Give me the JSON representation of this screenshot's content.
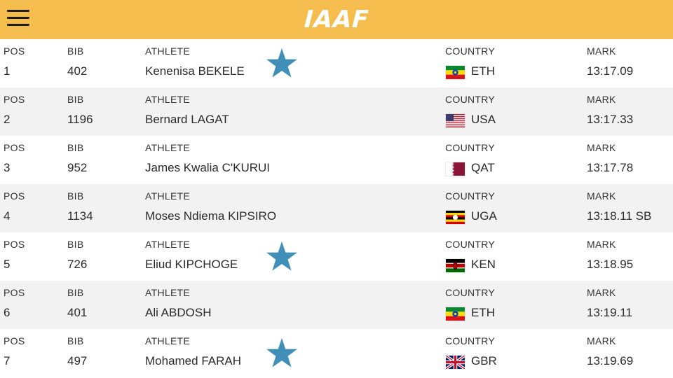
{
  "header": {
    "logo_text": "IAAF"
  },
  "columns": {
    "pos": "POS",
    "bib": "BIB",
    "athlete": "ATHLETE",
    "country": "COUNTRY",
    "mark": "MARK"
  },
  "colors": {
    "header_bg": "#f5bd4d",
    "star": "#3f8fb8"
  },
  "results": [
    {
      "pos": "1",
      "bib": "402",
      "athlete": "Kenenisa BEKELE",
      "country": "ETH",
      "flag": "eth",
      "mark": "13:17.09",
      "starred": true
    },
    {
      "pos": "2",
      "bib": "1196",
      "athlete": "Bernard LAGAT",
      "country": "USA",
      "flag": "usa",
      "mark": "13:17.33",
      "starred": false
    },
    {
      "pos": "3",
      "bib": "952",
      "athlete": "James Kwalia C'KURUI",
      "country": "QAT",
      "flag": "qat",
      "mark": "13:17.78",
      "starred": false
    },
    {
      "pos": "4",
      "bib": "1134",
      "athlete": "Moses Ndiema KIPSIRO",
      "country": "UGA",
      "flag": "uga",
      "mark": "13:18.11 SB",
      "starred": false
    },
    {
      "pos": "5",
      "bib": "726",
      "athlete": "Eliud KIPCHOGE",
      "country": "KEN",
      "flag": "ken",
      "mark": "13:18.95",
      "starred": true
    },
    {
      "pos": "6",
      "bib": "401",
      "athlete": "Ali ABDOSH",
      "country": "ETH",
      "flag": "eth",
      "mark": "13:19.11",
      "starred": false
    },
    {
      "pos": "7",
      "bib": "497",
      "athlete": "Mohamed FARAH",
      "country": "GBR",
      "flag": "gbr",
      "mark": "13:19.69",
      "starred": true
    }
  ]
}
